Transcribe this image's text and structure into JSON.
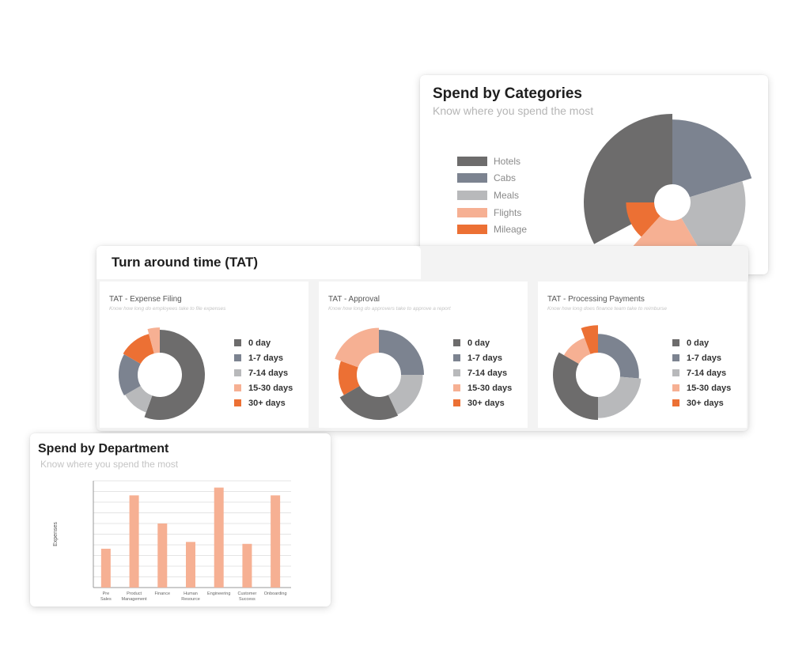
{
  "spend_by_categories": {
    "title": "Spend by Categories",
    "subtitle": "Know where you spend the most",
    "legend": [
      {
        "label": "Hotels",
        "color": "#6d6c6c"
      },
      {
        "label": "Cabs",
        "color": "#7c8390"
      },
      {
        "label": "Meals",
        "color": "#b8b9bb"
      },
      {
        "label": "Flights",
        "color": "#f6b093"
      },
      {
        "label": "Mileage",
        "color": "#ec7034"
      }
    ]
  },
  "tat": {
    "title": "Turn around time (TAT)",
    "legend": [
      {
        "label": "0 day",
        "color": "#6d6c6c"
      },
      {
        "label": "1-7 days",
        "color": "#7c8390"
      },
      {
        "label": "7-14 days",
        "color": "#b8b9bb"
      },
      {
        "label": "15-30 days",
        "color": "#f6b093"
      },
      {
        "label": "30+ days",
        "color": "#ec7034"
      }
    ],
    "panels": [
      {
        "title": "TAT - Expense Filing",
        "subtitle": "Know how long do employees take to file expenses"
      },
      {
        "title": "TAT - Approval",
        "subtitle": "Know how long do approvers take to approve a report"
      },
      {
        "title": "TAT - Processing Payments",
        "subtitle": "Know how long does finance team take to reimburse"
      }
    ]
  },
  "spend_by_department": {
    "title": "Spend by Department",
    "subtitle": "Know where you spend the most"
  },
  "chart_data": [
    {
      "type": "pie",
      "variant": "polar-area",
      "title": "Spend by Categories",
      "subtitle": "Know where you spend the most",
      "categories": [
        "Hotels",
        "Cabs",
        "Meals",
        "Flights",
        "Mileage"
      ],
      "values": [
        1.0,
        0.92,
        0.78,
        0.68,
        0.4
      ],
      "angles_deg": [
        [
          -118,
          0
        ],
        [
          0,
          73
        ],
        [
          73,
          150
        ],
        [
          150,
          222
        ],
        [
          222,
          270
        ]
      ],
      "colors": [
        "#6d6c6c",
        "#7c8390",
        "#b8b9bb",
        "#f6b093",
        "#ec7034"
      ],
      "legend": "left"
    },
    {
      "type": "pie",
      "variant": "radial-donut",
      "title": "TAT - Expense Filing",
      "subtitle": "Know how long do employees take to file expenses",
      "categories": [
        "0 day",
        "1-7 days",
        "7-14 days",
        "15-30 days",
        "30+ days"
      ],
      "colors": [
        "#6d6c6c",
        "#7c8390",
        "#b8b9bb",
        "#f6b093",
        "#ec7034"
      ],
      "segments": [
        {
          "category": "0 day",
          "start": 0,
          "end": 200,
          "outer": 1.0
        },
        {
          "category": "7-14 days",
          "start": 200,
          "end": 240,
          "outer": 0.78
        },
        {
          "category": "1-7 days",
          "start": 240,
          "end": 300,
          "outer": 0.83
        },
        {
          "category": "30+ days",
          "start": 300,
          "end": 345,
          "outer": 0.88
        },
        {
          "category": "15-30 days",
          "start": 345,
          "end": 360,
          "outer": 1.1
        }
      ],
      "legend": "right"
    },
    {
      "type": "pie",
      "variant": "radial-donut",
      "title": "TAT - Approval",
      "subtitle": "Know how long do approvers take to approve a report",
      "categories": [
        "0 day",
        "1-7 days",
        "7-14 days",
        "15-30 days",
        "30+ days"
      ],
      "colors": [
        "#6d6c6c",
        "#7c8390",
        "#b8b9bb",
        "#f6b093",
        "#ec7034"
      ],
      "segments": [
        {
          "category": "1-7 days",
          "start": 0,
          "end": 90,
          "outer": 1.0
        },
        {
          "category": "7-14 days",
          "start": 90,
          "end": 155,
          "outer": 0.95
        },
        {
          "category": "0 day",
          "start": 155,
          "end": 240,
          "outer": 1.0
        },
        {
          "category": "30+ days",
          "start": 240,
          "end": 290,
          "outer": 0.8
        },
        {
          "category": "15-30 days",
          "start": 290,
          "end": 360,
          "outer": 1.08
        }
      ],
      "legend": "right"
    },
    {
      "type": "pie",
      "variant": "radial-donut",
      "title": "TAT - Processing Payments",
      "subtitle": "Know how long does finance team take to reimburse",
      "categories": [
        "0 day",
        "1-7 days",
        "7-14 days",
        "15-30 days",
        "30+ days"
      ],
      "colors": [
        "#6d6c6c",
        "#7c8390",
        "#b8b9bb",
        "#f6b093",
        "#ec7034"
      ],
      "segments": [
        {
          "category": "1-7 days",
          "start": 0,
          "end": 95,
          "outer": 0.82
        },
        {
          "category": "7-14 days",
          "start": 95,
          "end": 180,
          "outer": 0.92
        },
        {
          "category": "0 day",
          "start": 180,
          "end": 300,
          "outer": 1.0
        },
        {
          "category": "15-30 days",
          "start": 300,
          "end": 340,
          "outer": 0.75
        },
        {
          "category": "30+ days",
          "start": 340,
          "end": 360,
          "outer": 1.2
        }
      ],
      "legend": "right"
    },
    {
      "type": "bar",
      "title": "Spend by Department",
      "subtitle": "Know where you spend the most",
      "categories": [
        "Pre Sales",
        "Product Management",
        "Finance",
        "Human Resource",
        "Engineering",
        "Customer Success",
        "Onboarding"
      ],
      "values": [
        40,
        95,
        66,
        47,
        103,
        45,
        95
      ],
      "ylabel": "Expenses",
      "xlabel": "",
      "ylim": [
        0,
        110
      ],
      "color": "#f6b093",
      "grid": true
    }
  ]
}
